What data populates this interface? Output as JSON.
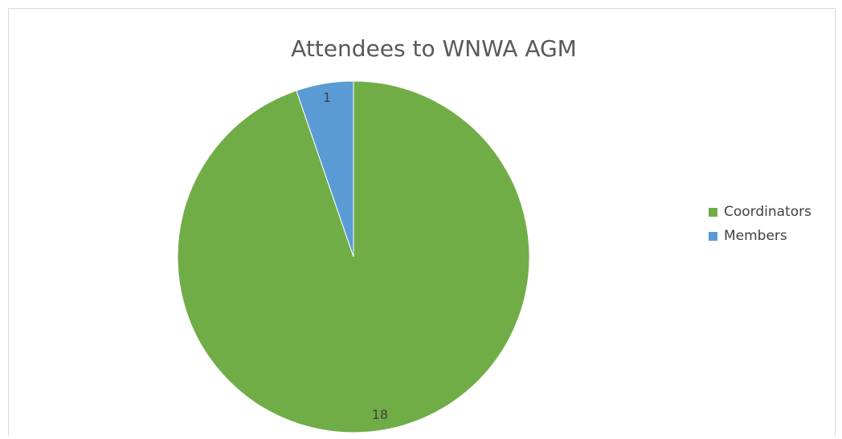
{
  "chart_data": {
    "type": "pie",
    "title": "Attendees to WNWA AGM",
    "categories": [
      "Coordinators",
      "Members"
    ],
    "values": [
      18,
      1
    ],
    "colors": [
      "#70ad47",
      "#5b9bd5"
    ],
    "legend": "right"
  }
}
